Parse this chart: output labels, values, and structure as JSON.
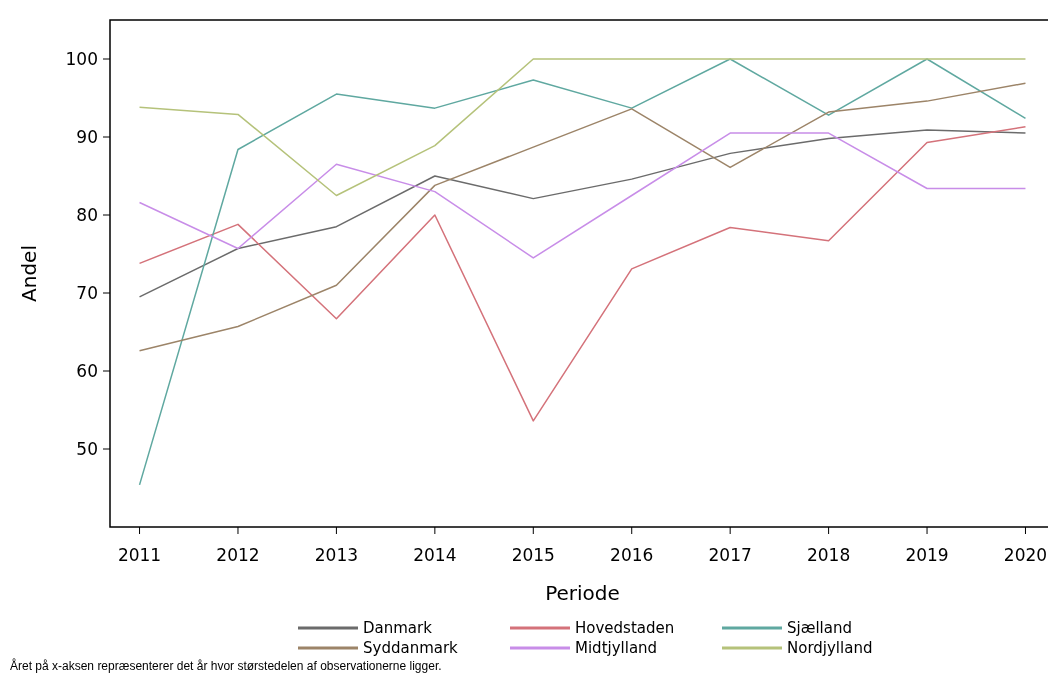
{
  "chart_data": {
    "type": "line",
    "xlabel": "Periode",
    "ylabel": "Andel",
    "x": [
      2011,
      2012,
      2013,
      2014,
      2015,
      2016,
      2017,
      2018,
      2019,
      2020
    ],
    "xlim": [
      2010.7,
      2020.3
    ],
    "xticks": [
      2011,
      2012,
      2013,
      2014,
      2015,
      2016,
      2017,
      2018,
      2019,
      2020
    ],
    "ylim": [
      40,
      105
    ],
    "yticks": [
      50,
      60,
      70,
      80,
      90,
      100
    ],
    "grid": false,
    "legend": "bottom",
    "marker": "none",
    "line_style": "solid",
    "series": [
      {
        "name": "Danmark",
        "color": "#6b6b6b",
        "values": [
          69.5,
          75.7,
          78.5,
          85,
          82.1,
          84.6,
          87.9,
          89.8,
          90.9,
          90.5
        ]
      },
      {
        "name": "Hovedstaden",
        "color": "#d4727a",
        "values": [
          73.8,
          78.8,
          66.7,
          80,
          53.6,
          73.1,
          78.4,
          76.7,
          89.3,
          91.3
        ]
      },
      {
        "name": "Sjælland",
        "color": "#5fa8a0",
        "values": [
          45.4,
          88.4,
          95.5,
          93.7,
          97.3,
          93.7,
          100,
          92.8,
          100,
          92.4
        ]
      },
      {
        "name": "Syddanmark",
        "color": "#9c8468",
        "values": [
          62.6,
          65.7,
          71,
          83.8,
          88.7,
          93.6,
          86.1,
          93.2,
          94.6,
          96.9
        ]
      },
      {
        "name": "Midtjylland",
        "color": "#c88de8",
        "values": [
          81.6,
          75.7,
          86.5,
          83,
          74.5,
          82.5,
          90.5,
          90.5,
          83.4,
          83.4
        ]
      },
      {
        "name": "Nordjylland",
        "color": "#b5c27a",
        "values": [
          93.8,
          92.9,
          82.5,
          88.9,
          100,
          100,
          100,
          100,
          100,
          100
        ]
      }
    ],
    "annotations": [
      "Året på x-aksen repræsenterer det år hvor størstedelen af observationerne ligger."
    ]
  }
}
